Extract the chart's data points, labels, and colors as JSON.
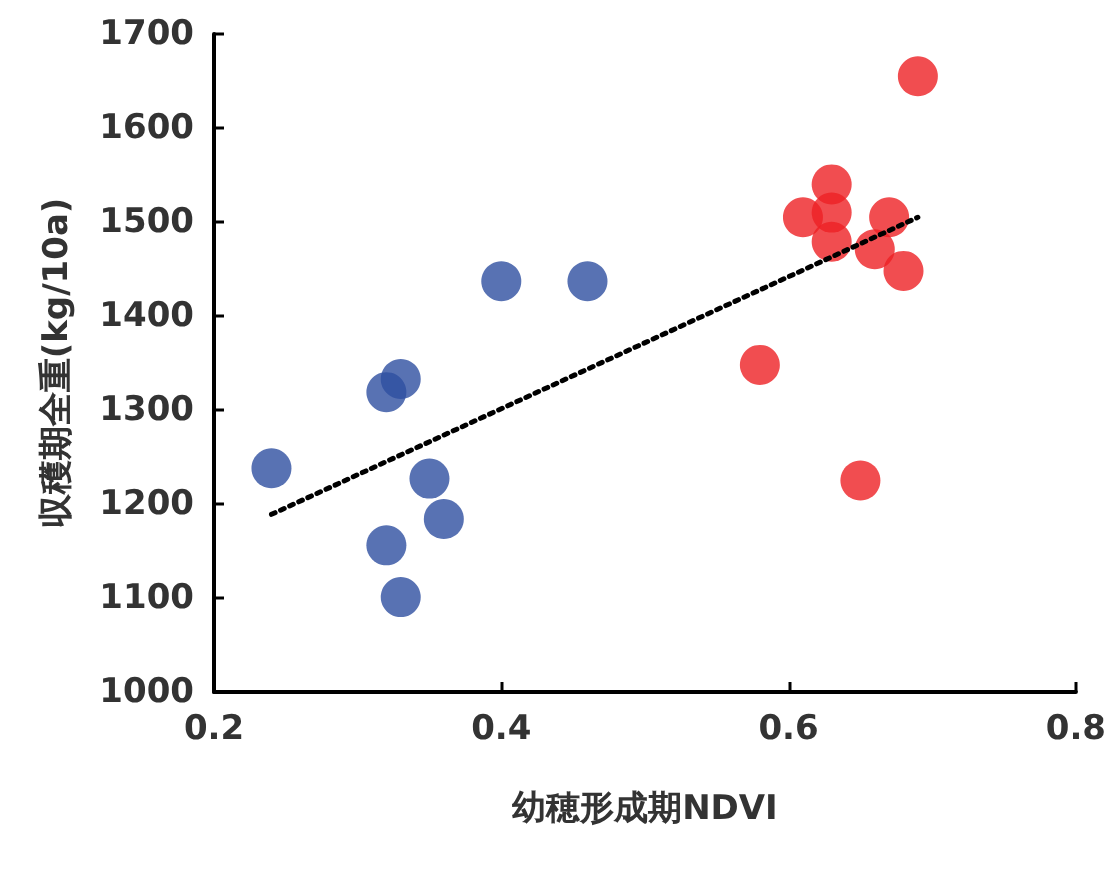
{
  "chart_data": {
    "type": "scatter",
    "xlabel": "幼穂形成期NDVI",
    "ylabel": "収穫期全重(kg/10a)",
    "xlim": [
      0.2,
      0.8
    ],
    "xticks": [
      0.2,
      0.4,
      0.6,
      0.8
    ],
    "ylim": [
      1000,
      1700
    ],
    "yticks": [
      1000,
      1100,
      1200,
      1300,
      1400,
      1500,
      1600,
      1700
    ],
    "grid": false,
    "marker": "circle",
    "series": [
      {
        "color": "#2e4fa0",
        "x": [
          0.24,
          0.32,
          0.33,
          0.4,
          0.46,
          0.35,
          0.36,
          0.32,
          0.33
        ],
        "values": [
          1238,
          1319,
          1333,
          1437,
          1437,
          1227,
          1184,
          1156,
          1101
        ]
      },
      {
        "color": "#ee2024",
        "x": [
          0.69,
          0.63,
          0.61,
          0.63,
          0.63,
          0.67,
          0.66,
          0.68,
          0.58,
          0.65
        ],
        "values": [
          1655,
          1540,
          1505,
          1510,
          1479,
          1505,
          1471,
          1448,
          1348,
          1225
        ]
      },
      {
        "type": "line",
        "color": "#000000",
        "line_style": "dotted",
        "marker": "none",
        "x": [
          0.24,
          0.69
        ],
        "values": [
          1189,
          1505
        ]
      }
    ]
  }
}
